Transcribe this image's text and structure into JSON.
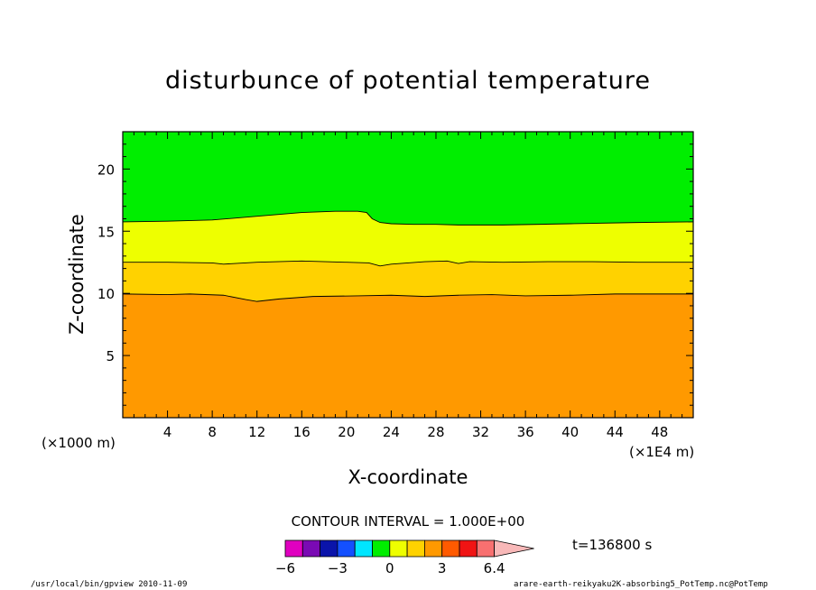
{
  "chart_data": {
    "type": "filled-contour",
    "title": "disturbunce of potential temperature",
    "xlabel": "X-coordinate",
    "ylabel": "Z-coordinate",
    "x_unit_left": "(×1000 m)",
    "x_unit_right": "(×1E4 m)",
    "x_ticks": [
      4,
      8,
      12,
      16,
      20,
      24,
      28,
      32,
      36,
      40,
      44,
      48
    ],
    "y_ticks": [
      5,
      10,
      15,
      20
    ],
    "xlim": [
      0,
      51
    ],
    "ylim": [
      0,
      23
    ],
    "contour_interval_text": "CONTOUR INTERVAL = 1.000E+00",
    "time_label": "t=136800 s",
    "colorbar_tick_labels": [
      "−6",
      "−3",
      "0",
      "3",
      "6.4"
    ],
    "colorbar_colors": [
      "#e000c0",
      "#7a0ab4",
      "#0a14aa",
      "#1450ff",
      "#00e6ff",
      "#00ee00",
      "#eeff00",
      "#ffd200",
      "#ff9900",
      "#ff5a00",
      "#f01414",
      "#f87070",
      "#f8b8b8"
    ],
    "bands": [
      {
        "level": "1",
        "color": "#ff9900",
        "upper_boundary": [
          [
            0,
            9.95
          ],
          [
            4,
            9.9
          ],
          [
            6,
            9.95
          ],
          [
            9,
            9.85
          ],
          [
            11,
            9.5
          ],
          [
            12,
            9.35
          ],
          [
            14,
            9.55
          ],
          [
            17,
            9.75
          ],
          [
            21,
            9.8
          ],
          [
            24,
            9.85
          ],
          [
            27,
            9.75
          ],
          [
            30,
            9.85
          ],
          [
            33,
            9.9
          ],
          [
            36,
            9.8
          ],
          [
            40,
            9.85
          ],
          [
            44,
            9.95
          ],
          [
            48,
            9.95
          ],
          [
            51,
            9.95
          ]
        ]
      },
      {
        "level": "2",
        "color": "#ffd200",
        "upper_boundary": [
          [
            0,
            12.5
          ],
          [
            4,
            12.5
          ],
          [
            8,
            12.45
          ],
          [
            9,
            12.35
          ],
          [
            12,
            12.5
          ],
          [
            16,
            12.6
          ],
          [
            20,
            12.5
          ],
          [
            22,
            12.45
          ],
          [
            23,
            12.2
          ],
          [
            24,
            12.35
          ],
          [
            27,
            12.55
          ],
          [
            29,
            12.6
          ],
          [
            30,
            12.4
          ],
          [
            31,
            12.55
          ],
          [
            34,
            12.5
          ],
          [
            38,
            12.55
          ],
          [
            42,
            12.55
          ],
          [
            46,
            12.5
          ],
          [
            51,
            12.5
          ]
        ]
      },
      {
        "level": "3",
        "color": "#eeff00",
        "upper_boundary": [
          [
            0,
            15.75
          ],
          [
            4,
            15.8
          ],
          [
            8,
            15.9
          ],
          [
            12,
            16.2
          ],
          [
            16,
            16.5
          ],
          [
            19,
            16.6
          ],
          [
            21,
            16.6
          ],
          [
            21.8,
            16.5
          ],
          [
            22.3,
            16.0
          ],
          [
            23,
            15.7
          ],
          [
            24,
            15.6
          ],
          [
            26,
            15.55
          ],
          [
            28,
            15.55
          ],
          [
            30,
            15.5
          ],
          [
            34,
            15.5
          ],
          [
            40,
            15.6
          ],
          [
            46,
            15.7
          ],
          [
            51,
            15.75
          ]
        ]
      },
      {
        "level": "4",
        "color": "#00ee00",
        "upper_boundary": [
          [
            0,
            23
          ],
          [
            51,
            23
          ]
        ]
      }
    ]
  },
  "footer": {
    "left": "/usr/local/bin/gpview  2010-11-09",
    "right": "arare-earth-reikyaku2K-absorbing5_PotTemp.nc@PotTemp"
  }
}
